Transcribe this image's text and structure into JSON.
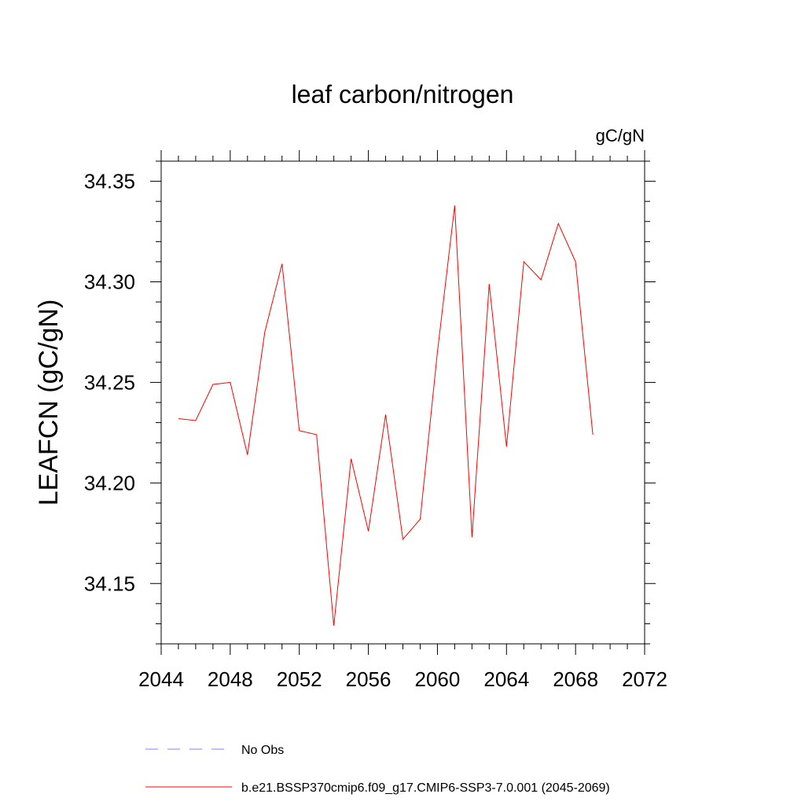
{
  "chart_data": {
    "type": "line",
    "title": "leaf carbon/nitrogen",
    "units_label": "gC/gN",
    "ylabel": "LEAFCN  (gC/gN)",
    "xlabel": "",
    "xlim": [
      2044,
      2072
    ],
    "ylim": [
      34.12,
      34.36
    ],
    "x_ticks": [
      2044,
      2048,
      2052,
      2056,
      2060,
      2064,
      2068,
      2072
    ],
    "x_tick_labels": [
      "2044",
      "2048",
      "2052",
      "2056",
      "2060",
      "2064",
      "2068",
      "2072"
    ],
    "y_ticks": [
      34.15,
      34.2,
      34.25,
      34.3,
      34.35
    ],
    "y_tick_labels": [
      "34.15",
      "34.20",
      "34.25",
      "34.30",
      "34.35"
    ],
    "grid": false,
    "legend_position": "bottom",
    "series": [
      {
        "name": "b.e21.BSSP370cmip6.f09_g17.CMIP6-SSP3-7.0.001 (2045-2069)",
        "color": "#ff0000",
        "line_style": "solid",
        "x": [
          2045,
          2046,
          2047,
          2048,
          2049,
          2050,
          2051,
          2052,
          2053,
          2054,
          2055,
          2056,
          2057,
          2058,
          2059,
          2060,
          2061,
          2062,
          2063,
          2064,
          2065,
          2066,
          2067,
          2068,
          2069
        ],
        "values": [
          34.232,
          34.231,
          34.249,
          34.25,
          34.214,
          34.275,
          34.309,
          34.226,
          34.224,
          34.129,
          34.212,
          34.176,
          34.234,
          34.172,
          34.182,
          34.265,
          34.338,
          34.173,
          34.299,
          34.218,
          34.31,
          34.301,
          34.329,
          34.31,
          34.224
        ]
      }
    ],
    "legend": [
      {
        "label": "No Obs",
        "color": "#8080ff",
        "line_style": "dashed"
      },
      {
        "label": "b.e21.BSSP370cmip6.f09_g17.CMIP6-SSP3-7.0.001 (2045-2069)",
        "color": "#ff0000",
        "line_style": "solid"
      }
    ]
  }
}
